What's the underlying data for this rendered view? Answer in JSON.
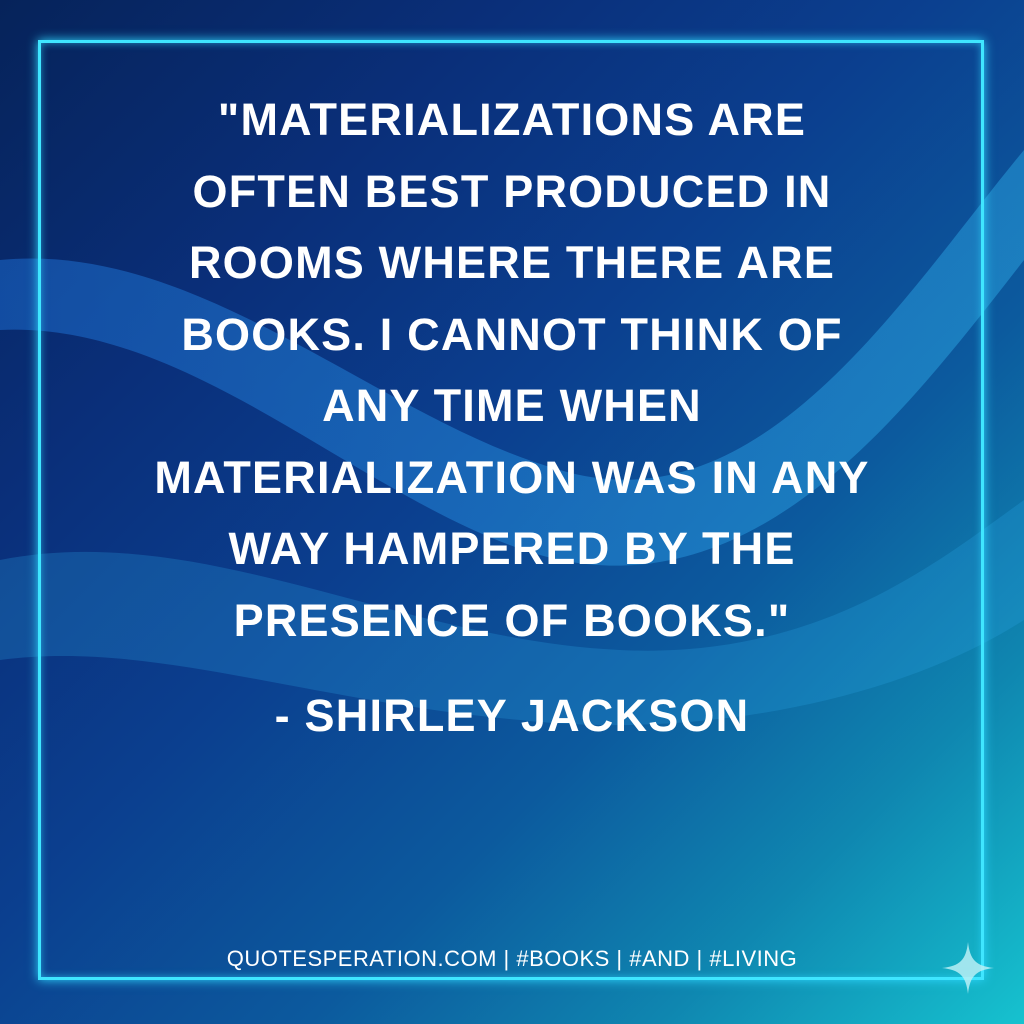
{
  "quote": {
    "lines": [
      "\"MATERIALIZATIONS ARE",
      "OFTEN BEST PRODUCED IN",
      "ROOMS WHERE THERE ARE",
      "BOOKS. I CANNOT THINK OF",
      "ANY TIME WHEN",
      "MATERIALIZATION WAS IN ANY",
      "WAY HAMPERED BY THE",
      "PRESENCE OF BOOKS.\""
    ],
    "author": "- SHIRLEY JACKSON"
  },
  "footer": "QUOTESPERATION.COM | #BOOKS | #AND | #LIVING",
  "colors": {
    "frame": "#3fe6ff",
    "text": "#ffffff"
  },
  "icons": [
    "sparkle-icon"
  ]
}
